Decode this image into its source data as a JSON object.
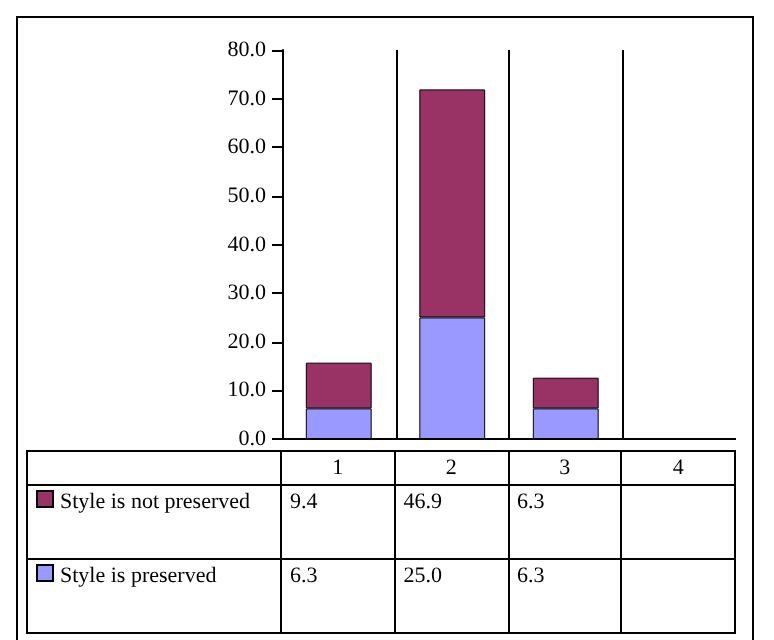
{
  "chart_data": {
    "type": "bar",
    "stacked": true,
    "categories": [
      "1",
      "2",
      "3",
      "4"
    ],
    "series": [
      {
        "name": "Style is preserved",
        "color": "#9999ff",
        "values": [
          6.3,
          25.0,
          6.3,
          null
        ],
        "value_labels": [
          "6.3",
          "25.0",
          "6.3",
          null
        ]
      },
      {
        "name": "Style is not preserved",
        "color": "#993366",
        "values": [
          9.4,
          46.9,
          6.3,
          null
        ],
        "value_labels": [
          "9.4",
          "46.9",
          "6.3",
          null
        ]
      }
    ],
    "ylim": [
      0,
      80
    ],
    "yticks": [
      {
        "value": 0,
        "label": "0.0"
      },
      {
        "value": 10,
        "label": "10.0"
      },
      {
        "value": 20,
        "label": "20.0"
      },
      {
        "value": 30,
        "label": "30.0"
      },
      {
        "value": 40,
        "label": "40.0"
      },
      {
        "value": 50,
        "label": "50.0"
      },
      {
        "value": 60,
        "label": "60.0"
      },
      {
        "value": 70,
        "label": "70.0"
      },
      {
        "value": 80,
        "label": "80.0"
      }
    ],
    "grid": "x",
    "legend": "bottom"
  }
}
